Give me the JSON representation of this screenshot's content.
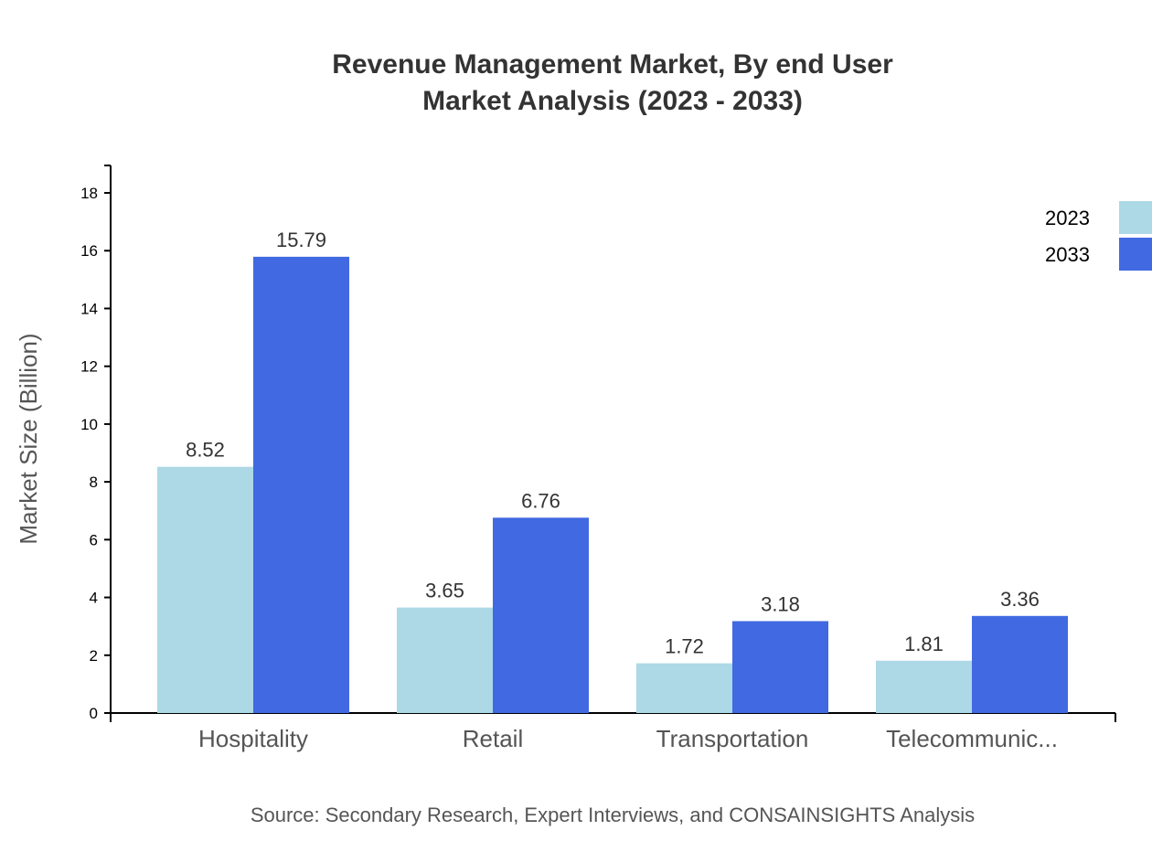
{
  "chart_data": {
    "type": "bar",
    "title": "Revenue Management Market, By end User",
    "subtitle": "Market Analysis (2023 - 2033)",
    "xlabel": "",
    "ylabel": "Market Size (Billion)",
    "categories": [
      "Hospitality",
      "Retail",
      "Transportation",
      "Telecommunic..."
    ],
    "series": [
      {
        "name": "2023",
        "color": "#add8e6",
        "values": [
          8.52,
          3.65,
          1.72,
          1.81
        ]
      },
      {
        "name": "2033",
        "color": "#4169e1",
        "values": [
          15.79,
          6.76,
          3.18,
          3.36
        ]
      }
    ],
    "yticks": [
      0,
      2,
      4,
      6,
      8,
      10,
      12,
      14,
      16,
      18
    ],
    "ylim": [
      0,
      18.95
    ],
    "grid": false,
    "legend": "top-right",
    "source": "Source: Secondary Research, Expert Interviews, and CONSAINSIGHTS Analysis"
  }
}
